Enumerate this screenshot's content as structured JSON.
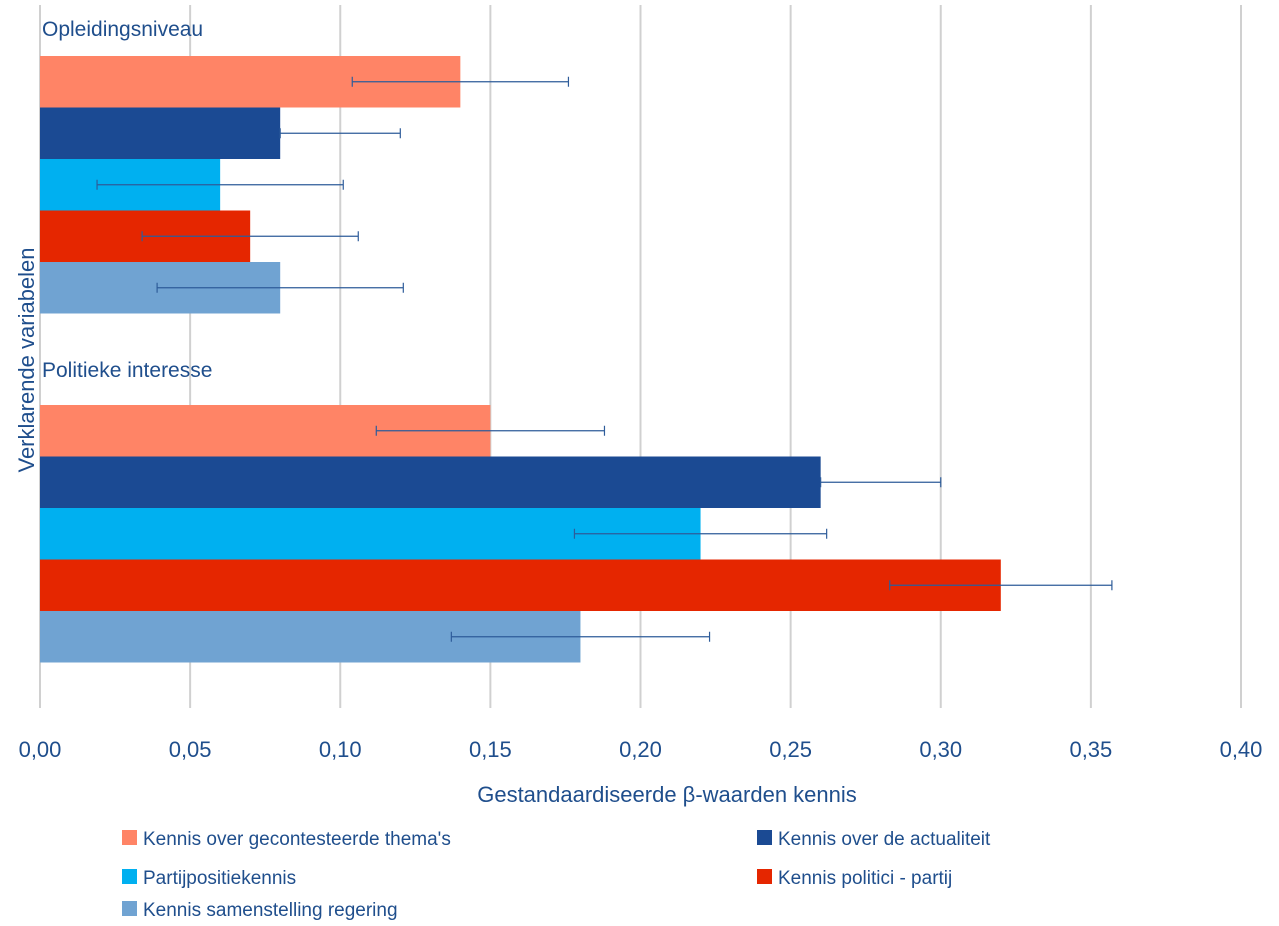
{
  "chart_data": {
    "type": "bar",
    "orientation": "horizontal",
    "title": "",
    "xlabel": "Gestandaardiseerde β-waarden kennis",
    "ylabel": "Verklarende variabelen",
    "xlim": [
      0,
      0.4
    ],
    "x_ticks": [
      "0,00",
      "0,05",
      "0,10",
      "0,15",
      "0,20",
      "0,25",
      "0,30",
      "0,35",
      "0,40"
    ],
    "grid": "vertical",
    "legend_position": "bottom",
    "categories": [
      "Opleidingsniveau",
      "Politieke interesse"
    ],
    "series": [
      {
        "name": "Kennis over gecontesteerde thema's",
        "color": "#ff8466",
        "values": [
          0.14,
          0.15
        ],
        "error_low": [
          0.104,
          0.112
        ],
        "error_high": [
          0.176,
          0.188
        ]
      },
      {
        "name": "Kennis over de actualiteit",
        "color": "#1b4a93",
        "values": [
          0.08,
          0.26
        ],
        "error_low": [
          0.08,
          0.26
        ],
        "error_high": [
          0.12,
          0.3
        ]
      },
      {
        "name": "Partijpositiekennis",
        "color": "#00b0f0",
        "values": [
          0.06,
          0.22
        ],
        "error_low": [
          0.019,
          0.178
        ],
        "error_high": [
          0.101,
          0.262
        ]
      },
      {
        "name": "Kennis politici - partij",
        "color": "#e52600",
        "values": [
          0.07,
          0.32
        ],
        "error_low": [
          0.034,
          0.283
        ],
        "error_high": [
          0.106,
          0.357
        ]
      },
      {
        "name": "Kennis samenstelling regering",
        "color": "#70a3d2",
        "values": [
          0.08,
          0.18
        ],
        "error_low": [
          0.039,
          0.137
        ],
        "error_high": [
          0.121,
          0.223
        ]
      }
    ]
  }
}
